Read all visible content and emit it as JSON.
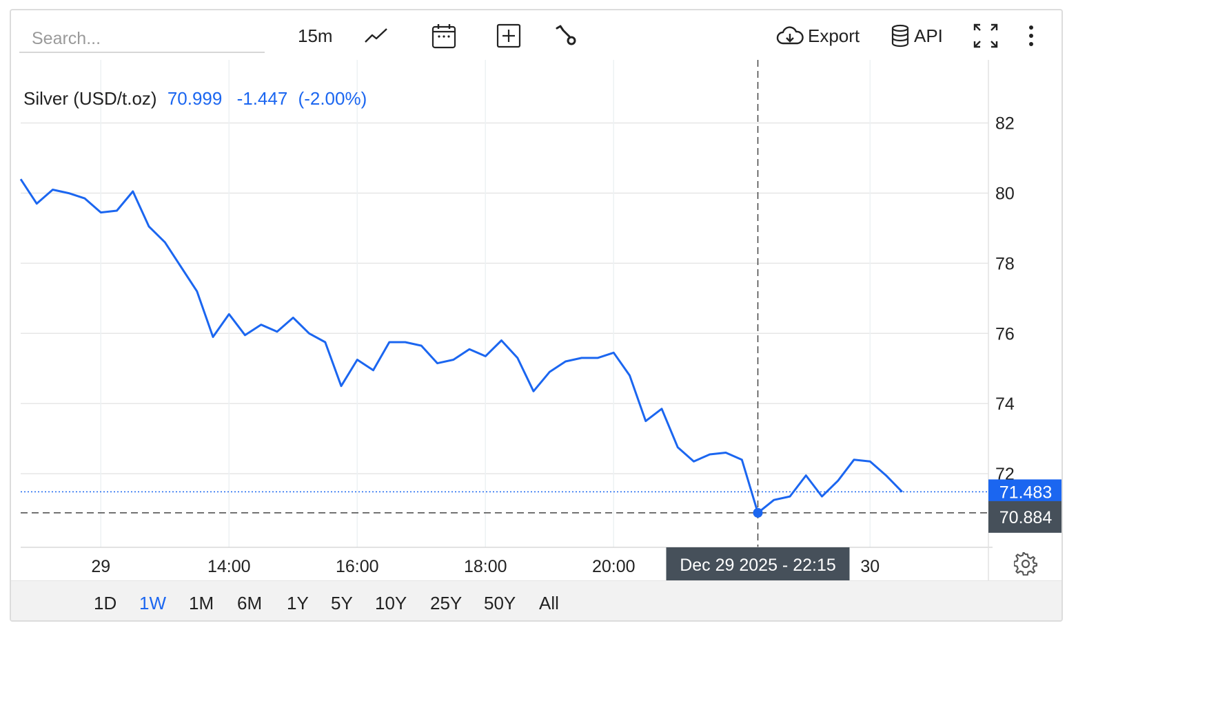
{
  "search": {
    "placeholder": "Search..."
  },
  "toolbar": {
    "interval_label": "15m",
    "export_label": "Export",
    "api_label": "API",
    "icons": [
      "line-chart-icon",
      "calendar-icon",
      "add-indicator-icon",
      "wrench-icon",
      "cloud-download-icon",
      "database-icon",
      "fullscreen-icon",
      "more-vertical-icon"
    ]
  },
  "legend": {
    "name": "Silver (USD/t.oz)",
    "price": "70.999",
    "change": "-1.447",
    "change_pct": "(-2.00%)"
  },
  "colors": {
    "line": "#1b66f0",
    "accent": "#1b66f0",
    "crosshair_label_bg": "#46505a",
    "grid": "#e6e6e6"
  },
  "chart_data": {
    "type": "line",
    "series": [
      {
        "values": [
          80.4,
          79.7,
          80.1,
          80.0,
          79.85,
          79.45,
          79.5,
          80.05,
          79.05,
          78.6,
          77.9,
          77.2,
          75.9,
          76.55,
          75.95,
          76.25,
          76.05,
          76.45,
          76.0,
          75.75,
          74.5,
          75.25,
          74.95,
          75.75,
          75.75,
          75.65,
          75.15,
          75.25,
          75.55,
          75.35,
          75.8,
          75.3,
          74.35,
          74.9,
          75.2,
          75.3,
          75.3,
          75.45,
          74.8,
          73.5,
          73.85,
          72.75,
          72.35,
          72.55,
          72.6,
          72.4,
          70.884,
          71.25,
          71.35,
          71.95,
          71.35,
          71.8,
          72.4,
          72.35,
          71.95,
          71.483
        ]
      }
    ],
    "x_start": "Dec 29 2025 - 10:45",
    "x_interval_minutes": 15,
    "xticks": [
      "29",
      "14:00",
      "16:00",
      "18:00",
      "20:00",
      "30"
    ],
    "yticks": [
      "72",
      "74",
      "76",
      "78",
      "80",
      "82"
    ],
    "ylim": [
      69.9,
      83.8
    ],
    "grid": true,
    "last_price_label": "71.483",
    "crosshair": {
      "point_index": 46,
      "value_label": "70.884",
      "date_label": "Dec 29 2025 - 22:15"
    }
  },
  "range_selector": {
    "options": [
      "1D",
      "1W",
      "1M",
      "6M",
      "1Y",
      "5Y",
      "10Y",
      "25Y",
      "50Y",
      "All"
    ],
    "active": "1W"
  }
}
